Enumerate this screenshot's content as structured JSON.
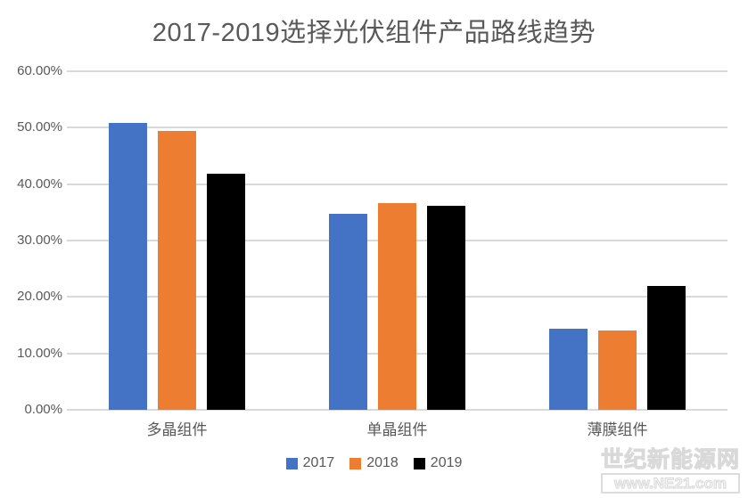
{
  "title": "2017-2019选择光伏组件产品路线趋势",
  "chart_data": {
    "type": "bar",
    "title": "2017-2019选择光伏组件产品路线趋势",
    "categories": [
      "多晶组件",
      "单晶组件",
      "薄膜组件"
    ],
    "series": [
      {
        "name": "2017",
        "color": "#4472C4",
        "values": [
          50.8,
          34.8,
          14.4
        ]
      },
      {
        "name": "2018",
        "color": "#ED7D31",
        "values": [
          49.4,
          36.6,
          14.0
        ]
      },
      {
        "name": "2019",
        "color": "#000000",
        "values": [
          41.8,
          36.2,
          22.0
        ]
      }
    ],
    "value_unit": "percent",
    "y_axis": {
      "min": 0,
      "max": 60,
      "step": 10,
      "tick_labels": [
        "0.00%",
        "10.00%",
        "20.00%",
        "30.00%",
        "40.00%",
        "50.00%",
        "60.00%"
      ]
    },
    "grid": true,
    "legend_position": "bottom"
  },
  "legend": {
    "items": [
      {
        "label": "2017",
        "color": "#4472C4"
      },
      {
        "label": "2018",
        "color": "#ED7D31"
      },
      {
        "label": "2019",
        "color": "#000000"
      }
    ]
  },
  "watermark": {
    "line1": "世纪新能源网",
    "line2": "www.NE21.com"
  },
  "colors": {
    "bar_2017": "#4472C4",
    "bar_2018": "#ED7D31",
    "bar_2019": "#000000",
    "gridline": "#D9D9D9",
    "axis_text": "#595959",
    "title_text": "#595959",
    "watermark_outline": "#D9D9D9"
  }
}
